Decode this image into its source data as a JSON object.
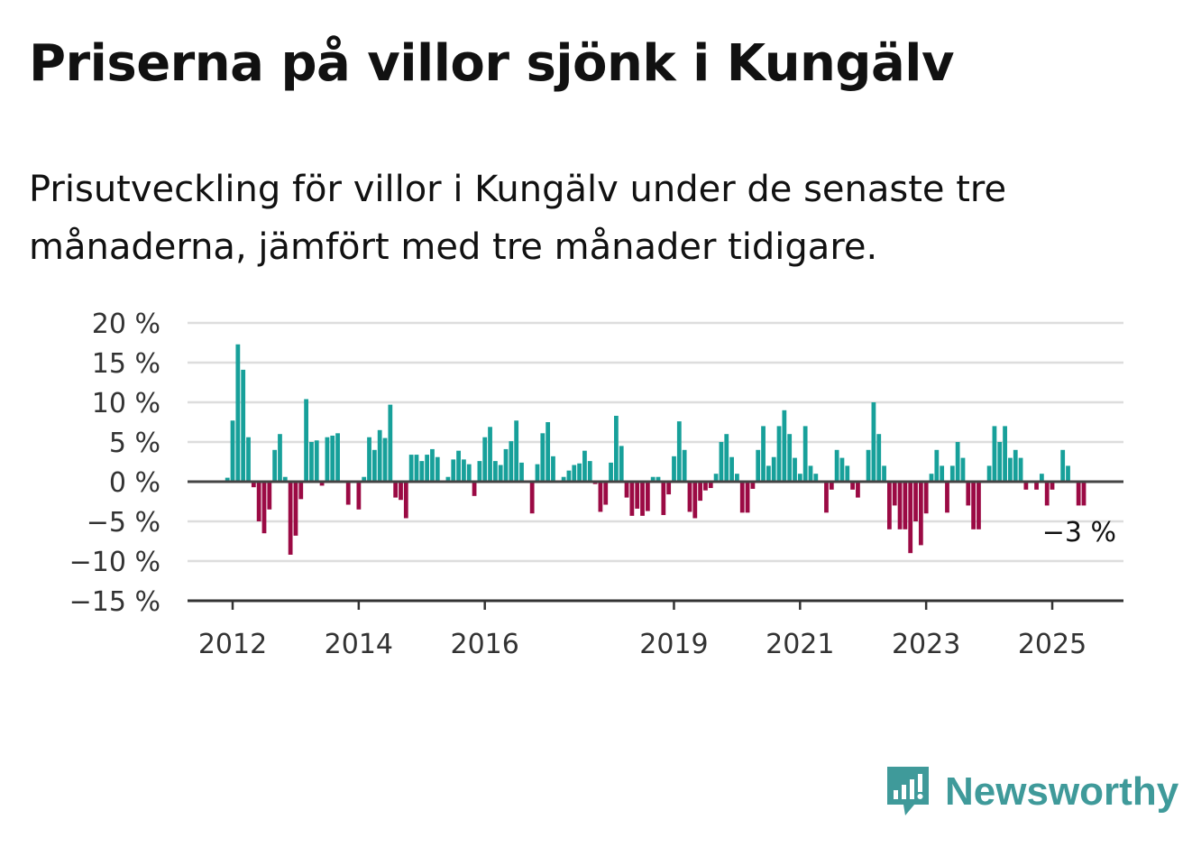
{
  "title": "Priserna på villor sjönk i Kungälv",
  "subtitle": "Prisutveckling för villor i Kungälv under de senaste tre månaderna, jämfört med tre månader tidigare.",
  "brand": {
    "name": "Newsworthy",
    "color": "#3f9a9a",
    "icon": "newsworthy-logo-icon"
  },
  "colors": {
    "positive": "#17a09a",
    "negative": "#9b0a44",
    "zero_line": "#444444",
    "grid": "#dddddd"
  },
  "end_label": "−3 %",
  "chart_data": {
    "type": "bar",
    "title": "",
    "xlabel": "",
    "ylabel": "",
    "ylim": [
      -15,
      20
    ],
    "y_ticks": [
      20,
      15,
      10,
      5,
      0,
      -5,
      -10,
      -15
    ],
    "y_tick_labels": [
      "20 %",
      "15 %",
      "10 %",
      "5 %",
      "0 %",
      "−5 %",
      "−10 %",
      "−15 %"
    ],
    "x_ticks": [
      2012,
      2014,
      2016,
      2019,
      2021,
      2023,
      2025
    ],
    "x_tick_labels": [
      "2012",
      "2014",
      "2016",
      "2019",
      "2021",
      "2023",
      "2025"
    ],
    "x_start": 2011.917,
    "x_step": 0.0833333,
    "grid": true,
    "legend": "none",
    "values": [
      0.5,
      7.7,
      17.3,
      14.1,
      5.6,
      -0.7,
      -5.0,
      -6.5,
      -3.5,
      4.0,
      6.0,
      0.6,
      -9.2,
      -6.8,
      -2.2,
      10.4,
      5.0,
      5.2,
      -0.5,
      5.6,
      5.8,
      6.1,
      0.0,
      -2.9,
      0.0,
      -3.5,
      0.6,
      5.6,
      4.0,
      6.5,
      5.5,
      9.7,
      -2.0,
      -2.3,
      -4.6,
      3.4,
      3.4,
      2.6,
      3.4,
      4.1,
      3.1,
      0.0,
      0.6,
      2.8,
      3.9,
      2.8,
      2.2,
      -1.8,
      2.6,
      5.6,
      6.9,
      2.6,
      2.1,
      4.1,
      5.1,
      7.7,
      2.4,
      0.0,
      -4.0,
      2.2,
      6.1,
      7.5,
      3.2,
      0.0,
      0.6,
      1.4,
      2.1,
      2.3,
      3.9,
      2.6,
      -0.3,
      -3.8,
      -2.9,
      2.4,
      8.3,
      4.5,
      -2.0,
      -4.3,
      -3.4,
      -4.3,
      -3.7,
      0.6,
      0.6,
      -4.2,
      -1.6,
      3.2,
      7.6,
      4.0,
      -3.8,
      -4.6,
      -2.4,
      -1.1,
      -0.8,
      1.0,
      5.0,
      6.0,
      3.1,
      1.0,
      -3.9,
      -3.9,
      -0.9,
      4.0,
      7.0,
      2.0,
      3.1,
      7.0,
      9.0,
      6.0,
      3.0,
      1.0,
      7.0,
      2.0,
      1.0,
      0.0,
      -3.9,
      -1.0,
      4.0,
      3.0,
      2.0,
      -1.0,
      -2.0,
      0.0,
      4.0,
      10.0,
      6.0,
      2.0,
      -6.0,
      -3.0,
      -6.0,
      -6.0,
      -9.0,
      -5.0,
      -8.0,
      -4.0,
      1.0,
      4.0,
      2.0,
      -3.9,
      2.0,
      5.0,
      3.0,
      -3.0,
      -6.0,
      -6.0,
      0.0,
      2.0,
      7.0,
      5.0,
      7.0,
      3.0,
      4.0,
      3.0,
      -1.0,
      0.0,
      -1.0,
      1.0,
      -3.0,
      -1.0,
      0.0,
      4.0,
      2.0,
      0.0,
      -3.0,
      -3.0
    ]
  }
}
